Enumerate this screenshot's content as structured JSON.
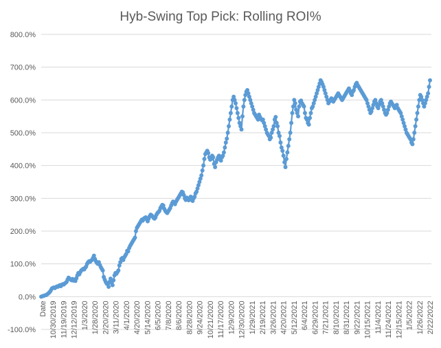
{
  "chart_data": {
    "type": "line",
    "title": "Hyb-Swing Top Pick: Rolling ROI%",
    "xlabel": "",
    "ylabel": "",
    "ylim": [
      -100,
      800
    ],
    "y_ticks": [
      -100,
      0,
      100,
      200,
      300,
      400,
      500,
      600,
      700,
      800
    ],
    "y_tick_labels": [
      "-100.0%",
      "0.0%",
      "100.0%",
      "200.0%",
      "300.0%",
      "400.0%",
      "500.0%",
      "600.0%",
      "700.0%",
      "800.0%"
    ],
    "x_tick_labels": [
      "Date",
      "10/30/2019",
      "11/19/2019",
      "12/12/2019",
      "1/3/2020",
      "1/28/2020",
      "2/20/2020",
      "3/11/2020",
      "4/1/2020",
      "4/20/2020",
      "5/14/2020",
      "6/5/2020",
      "7/8/2020",
      "8/6/2020",
      "8/28/2020",
      "9/24/2020",
      "10/21/2020",
      "11/17/2020",
      "12/9/2020",
      "12/30/2020",
      "1/29/2021",
      "2/19/2021",
      "3/26/2021",
      "4/20/2021",
      "5/12/2021",
      "6/4/2021",
      "6/29/2021",
      "7/21/2021",
      "8/10/2021",
      "8/31/2021",
      "9/22/2021",
      "10/15/2021",
      "11/4/2021",
      "11/24/2021",
      "12/15/2021",
      "1/5/2022",
      "1/26/2022",
      "2/22/2022"
    ],
    "grid": true,
    "legend": "none",
    "line_color": "#5b9bd5",
    "series": [
      {
        "values": [
          0,
          1,
          2,
          3,
          4,
          5,
          7,
          9,
          12,
          15,
          20,
          25,
          27,
          28,
          26,
          29,
          31,
          30,
          33,
          35,
          32,
          36,
          38,
          37,
          40,
          42,
          45,
          52,
          58,
          55,
          53,
          50,
          54,
          49,
          52,
          48,
          56,
          65,
          72,
          68,
          75,
          80,
          82,
          85,
          83,
          88,
          92,
          100,
          105,
          108,
          106,
          110,
          112,
          118,
          125,
          115,
          108,
          103,
          100,
          105,
          97,
          90,
          85,
          80,
          60,
          52,
          45,
          40,
          38,
          30,
          45,
          55,
          42,
          35,
          50,
          65,
          72,
          70,
          75,
          80,
          95,
          105,
          115,
          118,
          112,
          120,
          125,
          130,
          140,
          138,
          148,
          155,
          160,
          165,
          170,
          175,
          180,
          200,
          210,
          215,
          220,
          225,
          230,
          235,
          232,
          238,
          240,
          242,
          236,
          230,
          238,
          245,
          250,
          248,
          245,
          240,
          238,
          242,
          250,
          255,
          258,
          262,
          270,
          275,
          280,
          278,
          268,
          262,
          258,
          255,
          260,
          265,
          270,
          278,
          285,
          290,
          288,
          282,
          290,
          295,
          300,
          305,
          310,
          315,
          320,
          318,
          310,
          300,
          295,
          302,
          298,
          294,
          300,
          305,
          298,
          292,
          300,
          305,
          315,
          320,
          330,
          340,
          350,
          360,
          370,
          385,
          400,
          420,
          435,
          440,
          445,
          438,
          425,
          418,
          420,
          430,
          425,
          405,
          395,
          410,
          418,
          425,
          430,
          420,
          415,
          425,
          430,
          440,
          455,
          470,
          482,
          500,
          520,
          540,
          560,
          580,
          600,
          610,
          600,
          590,
          575,
          560,
          545,
          530,
          520,
          510,
          550,
          580,
          600,
          615,
          625,
          630,
          620,
          610,
          600,
          590,
          580,
          570,
          560,
          555,
          550,
          545,
          540,
          555,
          548,
          542,
          538,
          540,
          530,
          520,
          510,
          500,
          495,
          490,
          480,
          485,
          500,
          510,
          520,
          540,
          548,
          530,
          520,
          500,
          490,
          470,
          455,
          445,
          430,
          410,
          395,
          420,
          440,
          460,
          480,
          500,
          530,
          560,
          580,
          600,
          590,
          570,
          560,
          550,
          580,
          595,
          598,
          590,
          585,
          580,
          560,
          545,
          540,
          530,
          525,
          545,
          560,
          575,
          580,
          590,
          600,
          610,
          620,
          630,
          640,
          650,
          660,
          655,
          648,
          640,
          630,
          620,
          610,
          600,
          590,
          595,
          600,
          605,
          600,
          595,
          600,
          605,
          610,
          615,
          620,
          615,
          610,
          605,
          600,
          605,
          610,
          615,
          620,
          625,
          630,
          635,
          628,
          620,
          615,
          625,
          630,
          640,
          648,
          652,
          645,
          640,
          635,
          630,
          625,
          620,
          615,
          610,
          605,
          600,
          590,
          580,
          570,
          560,
          565,
          575,
          585,
          595,
          600,
          590,
          580,
          575,
          585,
          595,
          600,
          590,
          580,
          570,
          560,
          555,
          560,
          570,
          580,
          590,
          595,
          590,
          585,
          580,
          575,
          580,
          585,
          575,
          570,
          565,
          560,
          550,
          540,
          530,
          520,
          510,
          500,
          495,
          490,
          485,
          480,
          470,
          465,
          480,
          500,
          520,
          540,
          560,
          580,
          600,
          615,
          610,
          600,
          590,
          580,
          590,
          600,
          610,
          620,
          640,
          660
        ]
      }
    ]
  }
}
